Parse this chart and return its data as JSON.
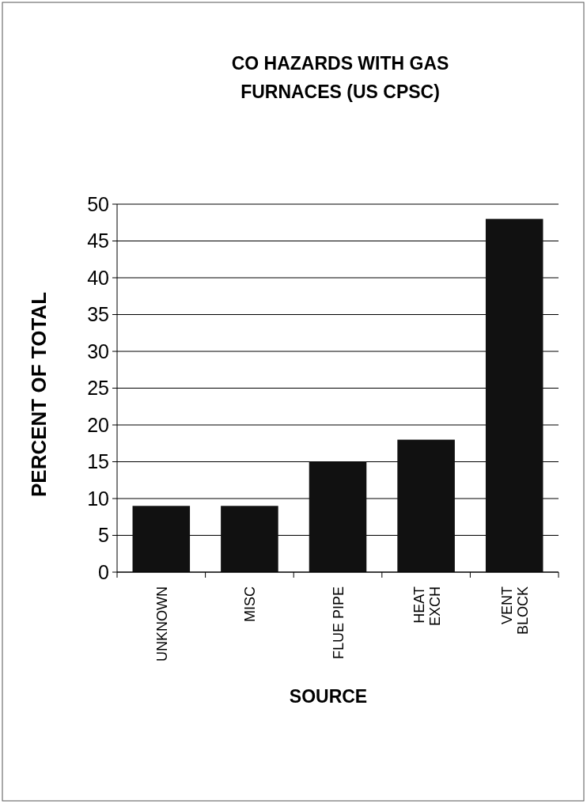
{
  "chart_data": {
    "type": "bar",
    "title": "CO HAZARDS WITH GAS\nFURNACES (US CPSC)",
    "xlabel": "SOURCE",
    "ylabel": "PERCENT OF TOTAL",
    "categories": [
      "UNKNOWN",
      "MISC",
      "FLUE PIPE",
      "HEAT\nEXCH",
      "VENT\nBLOCK"
    ],
    "values": [
      9,
      9,
      15,
      18,
      48
    ],
    "color": "#111111",
    "ylim": [
      0,
      50
    ],
    "yticks": [
      0,
      5,
      10,
      15,
      20,
      25,
      30,
      35,
      40,
      45,
      50
    ],
    "grid": "y"
  }
}
